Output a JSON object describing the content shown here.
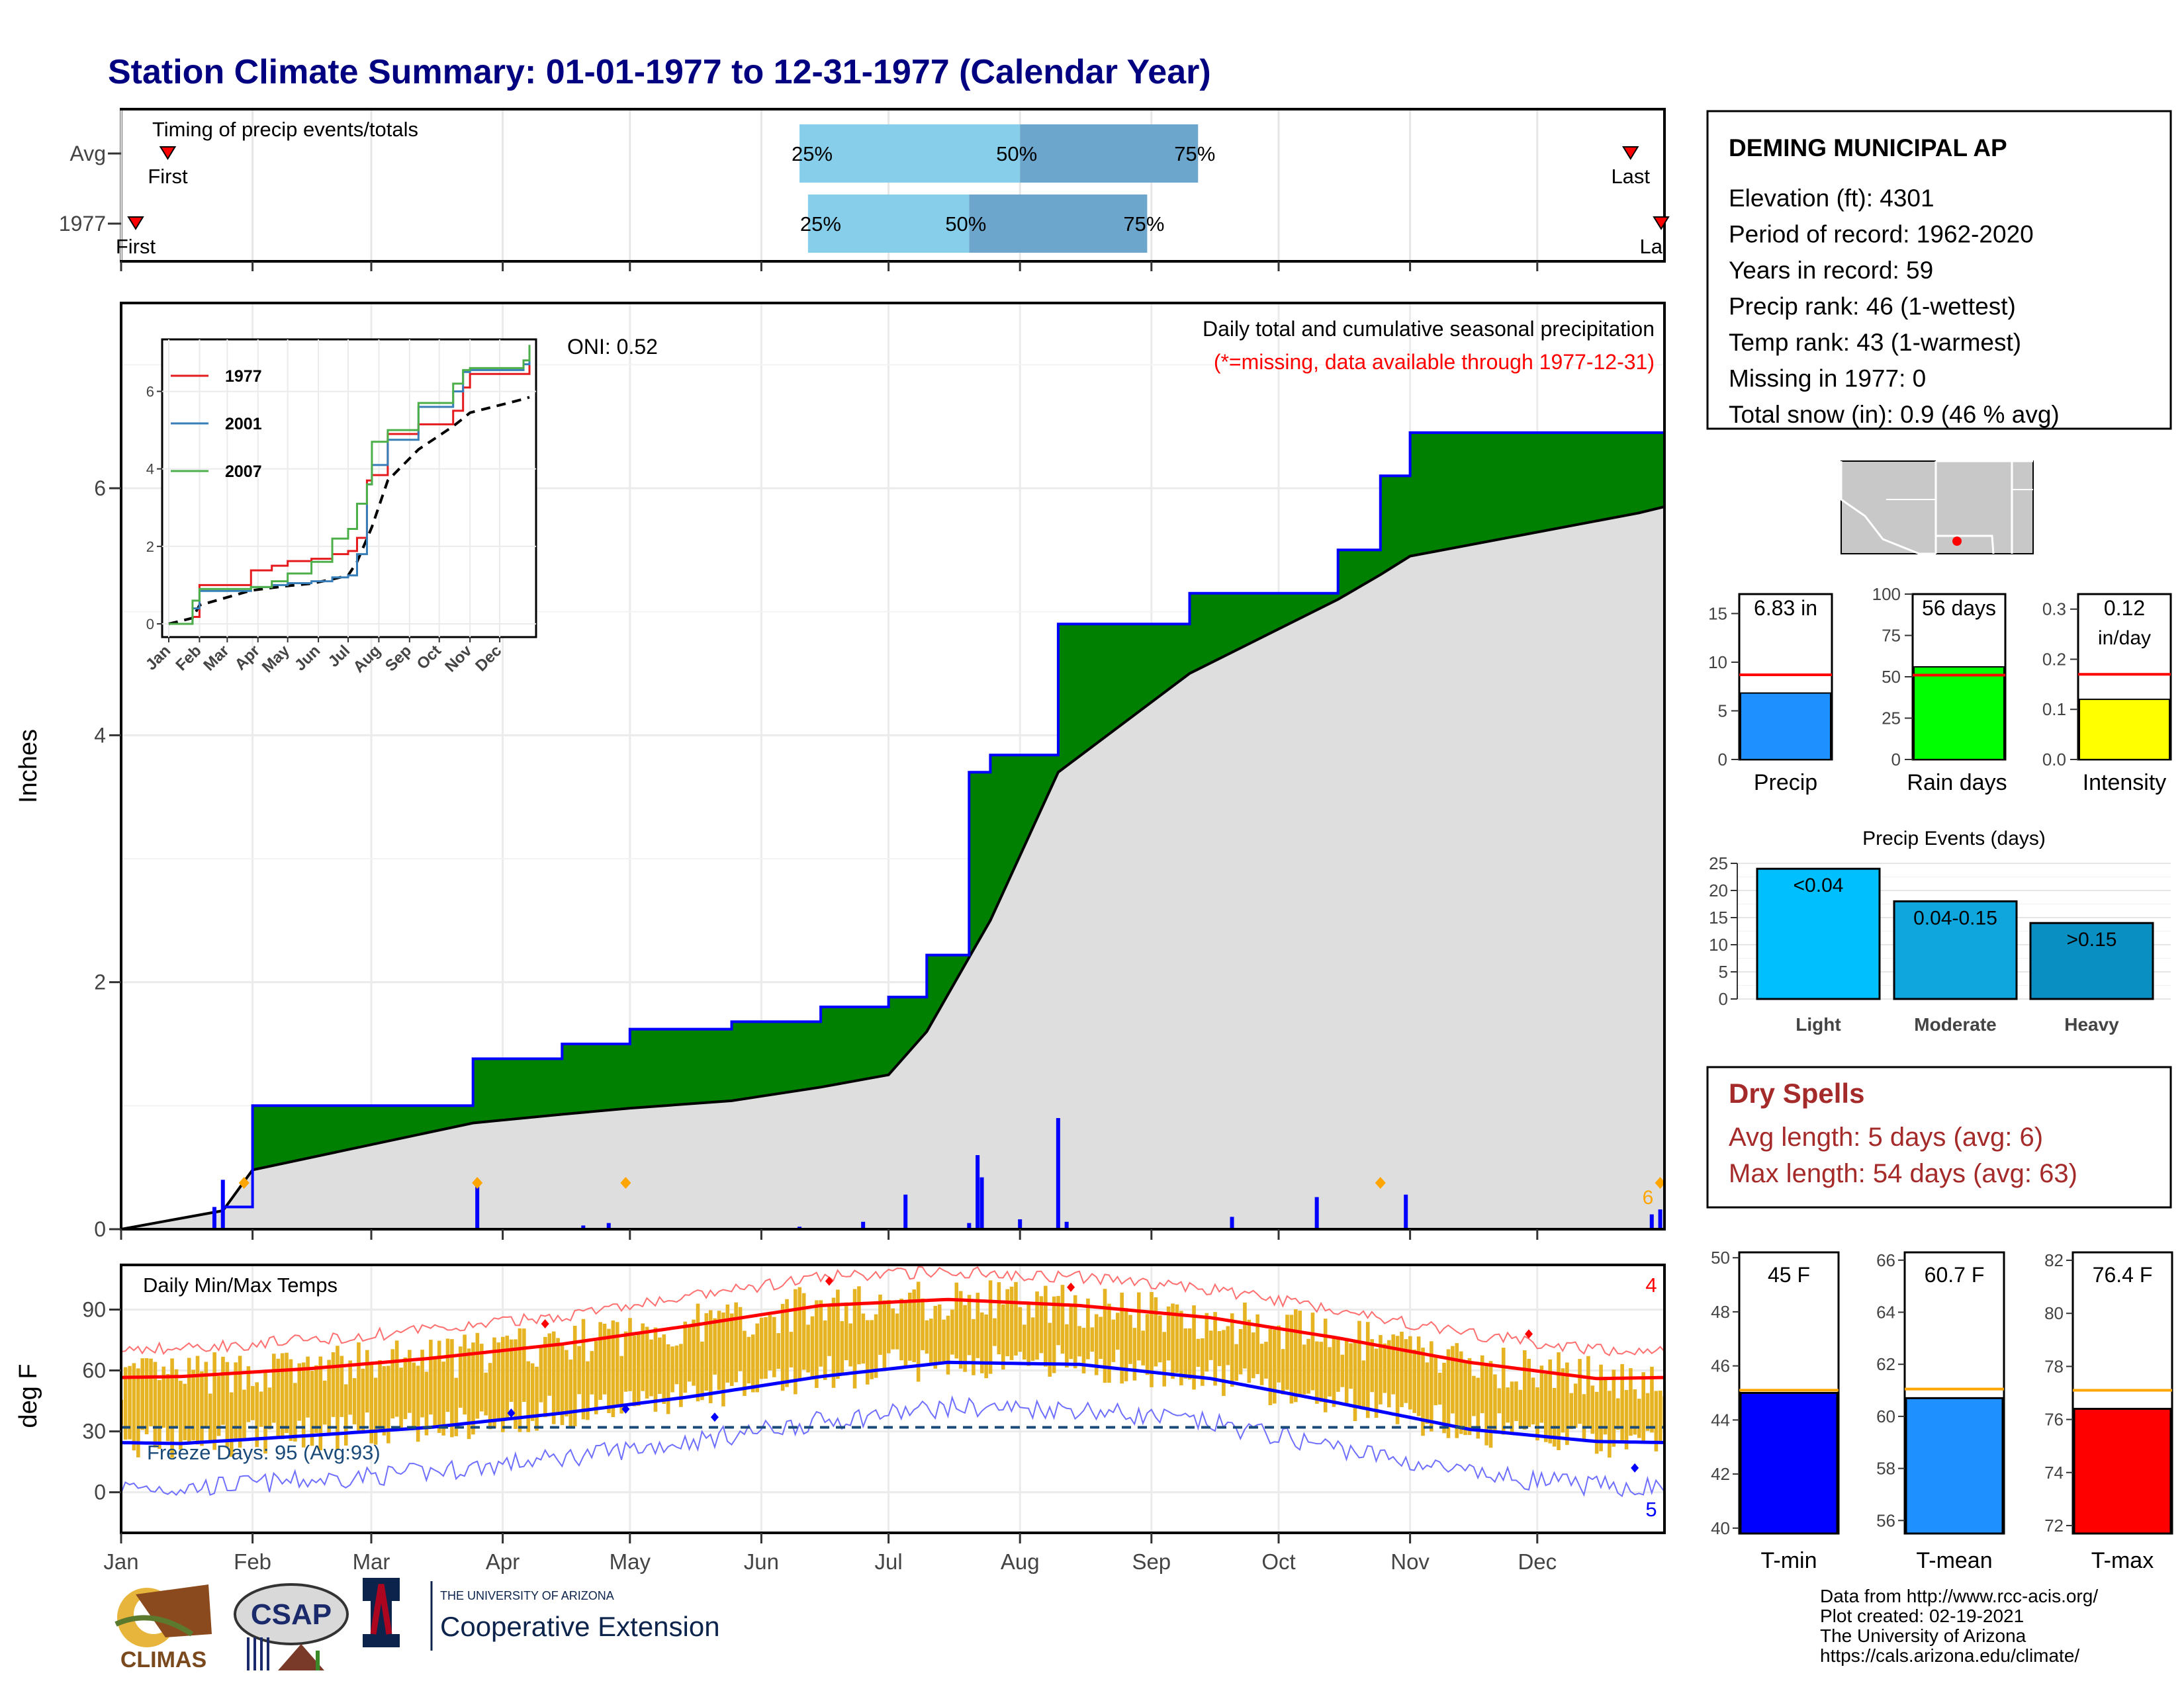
{
  "title": "Station Climate Summary: 01-01-1977 to 12-31-1977 (Calendar Year)",
  "months": [
    "Jan",
    "Feb",
    "Mar",
    "Apr",
    "May",
    "Jun",
    "Jul",
    "Aug",
    "Sep",
    "Oct",
    "Nov",
    "Dec"
  ],
  "timing": {
    "label": "Timing of precip events/totals",
    "rows": [
      {
        "name": "Avg",
        "first_doy": 12,
        "last_doy": 357,
        "p25": 161,
        "p50": 213,
        "p75": 255,
        "first_label": "First",
        "last_label": "Last",
        "l25": "25%",
        "l50": "50%",
        "l75": "75%"
      },
      {
        "name": "1977",
        "first_doy": 1,
        "last_doy": 365,
        "p25": 163,
        "p50": 201,
        "p75": 243,
        "first_label": "First",
        "last_label": "La",
        "l25": "25%",
        "l50": "50%",
        "l75": "75%"
      }
    ]
  },
  "precip_panel": {
    "ylabel": "Inches",
    "yticks": [
      0,
      2,
      4,
      6
    ],
    "oni": "ONI: 0.52",
    "caption": "Daily total and cumulative seasonal precipitation",
    "missing_note": "(*=missing, data available through 1977-12-31)",
    "corner_count": "6",
    "colors": {
      "above_avg": "#008000",
      "avg_fill": "#dedede",
      "bars": "#0000ff",
      "snow": "#ffa500"
    }
  },
  "inset": {
    "yticks": [
      0,
      2,
      4,
      6
    ],
    "legend": [
      {
        "name": "1977",
        "color": "#e41a1c"
      },
      {
        "name": "2001",
        "color": "#377eb8"
      },
      {
        "name": "2007",
        "color": "#4daf4a"
      }
    ]
  },
  "temp_panel": {
    "title": "Daily Min/Max Temps",
    "ylabel": "deg F",
    "yticks": [
      0,
      30,
      60,
      90
    ],
    "freeze_text": "Freeze Days: 95 (Avg:93)",
    "freeze_line": 32,
    "count_hot": "4",
    "count_cold": "5"
  },
  "station": {
    "name": "DEMING MUNICIPAL AP",
    "lines": [
      "Elevation (ft): 4301",
      "Period of record: 1962-2020",
      "Years in record: 59",
      "Precip rank: 46 (1-wettest)",
      "Temp rank: 43 (1-warmest)",
      "Missing in 1977: 0",
      "Total snow (in): 0.9 (46 % avg)"
    ]
  },
  "mini_bars": [
    {
      "name": "Precip",
      "value": 6.83,
      "label": "6.83 in",
      "avg": 8.7,
      "ymax": 17,
      "ticks": [
        0,
        5,
        10,
        15
      ],
      "color": "#1e90ff"
    },
    {
      "name": "Rain days",
      "value": 56,
      "label": "56 days",
      "avg": 51,
      "ymax": 100,
      "ticks": [
        0,
        25,
        50,
        75,
        100
      ],
      "color": "#00ff00"
    },
    {
      "name": "Intensity",
      "value": 0.12,
      "label": "0.12",
      "label2": "in/day",
      "avg": 0.17,
      "ymax": 0.33,
      "ticks": [
        "0.0",
        "0.1",
        "0.2",
        "0.3"
      ],
      "color": "#ffff00"
    }
  ],
  "precip_events": {
    "title": "Precip Events (days)",
    "ymax": 25,
    "ticks": [
      0,
      5,
      10,
      15,
      20,
      25
    ],
    "bars": [
      {
        "name": "Light",
        "value": 24,
        "label": "<0.04",
        "color": "#00bfff"
      },
      {
        "name": "Moderate",
        "value": 18,
        "label": "0.04-0.15",
        "color": "#0fa5dd"
      },
      {
        "name": "Heavy",
        "value": 14,
        "label": ">0.15",
        "color": "#0a8fc2"
      }
    ]
  },
  "dry_spells": {
    "title": "Dry Spells",
    "lines": [
      "Avg length: 5 days (avg: 6)",
      "Max length: 54 days (avg: 63)"
    ]
  },
  "temp_bars": [
    {
      "name": "T-min",
      "value": 45,
      "label": "45 F",
      "avg": 45.1,
      "ymin": 39.8,
      "ymax": 50.2,
      "ticks": [
        40,
        42,
        44,
        46,
        48,
        50
      ],
      "color": "#0000ff"
    },
    {
      "name": "T-mean",
      "value": 60.7,
      "label": "60.7 F",
      "avg": 61.05,
      "ymin": 55.5,
      "ymax": 66.3,
      "ticks": [
        56,
        58,
        60,
        62,
        64,
        66
      ],
      "color": "#1e90ff"
    },
    {
      "name": "T-max",
      "value": 76.4,
      "label": "76.4 F",
      "avg": 77.1,
      "ymin": 71.7,
      "ymax": 82.3,
      "ticks": [
        72,
        74,
        76,
        78,
        80,
        82
      ],
      "color": "#ff0000"
    }
  ],
  "footer": {
    "lines": [
      "Data from http://www.rcc-acis.org/",
      "Plot created: 02-19-2021",
      "The University of Arizona",
      "https://cals.arizona.edu/climate/"
    ],
    "logos": {
      "climas": "CLIMAS",
      "csap": "CSAP",
      "ua_small": "THE UNIVERSITY OF ARIZONA",
      "coop": "Cooperative Extension"
    }
  },
  "chart_data": {
    "type": "area",
    "title": "Daily total and cumulative seasonal precipitation",
    "ylabel": "Inches",
    "ylim": [
      0,
      7.5
    ],
    "x": [
      "1977-01-01",
      "1977-01-25",
      "1977-02-01",
      "1977-03-25",
      "1977-04-15",
      "1977-05-01",
      "1977-05-25",
      "1977-06-15",
      "1977-07-01",
      "1977-07-10",
      "1977-07-20",
      "1977-07-25",
      "1977-08-10",
      "1977-09-10",
      "1977-10-15",
      "1977-10-25",
      "1977-11-01",
      "1977-12-25",
      "1977-12-31"
    ],
    "series": [
      {
        "name": "1977",
        "values": [
          0,
          0.18,
          1.0,
          1.38,
          1.5,
          1.62,
          1.68,
          1.8,
          1.88,
          2.22,
          3.7,
          3.84,
          4.9,
          5.15,
          5.5,
          6.1,
          6.45,
          6.45,
          6.83
        ]
      },
      {
        "name": "2001",
        "values": [
          0,
          0.4,
          0.85,
          0.95,
          1.0,
          1.05,
          1.1,
          1.2,
          1.25,
          1.8,
          3.6,
          4.1,
          4.75,
          5.6,
          6.0,
          6.5,
          6.55,
          6.7,
          6.95
        ]
      },
      {
        "name": "2007",
        "values": [
          0,
          0.6,
          0.9,
          0.95,
          1.1,
          1.3,
          1.6,
          2.2,
          2.45,
          3.1,
          3.6,
          4.7,
          5.0,
          5.7,
          6.2,
          6.55,
          6.6,
          6.8,
          7.2
        ]
      }
    ],
    "average_cumulative": [
      0,
      0.15,
      0.48,
      0.86,
      0.93,
      0.98,
      1.04,
      1.15,
      1.25,
      1.6,
      2.2,
      2.5,
      3.7,
      4.5,
      5.1,
      5.3,
      5.45,
      5.8,
      5.85
    ],
    "daily_bars": [
      {
        "date": "1977-01-23",
        "in": 0.18
      },
      {
        "date": "1977-01-25",
        "in": 0.4
      },
      {
        "date": "1977-03-26",
        "in": 0.38
      },
      {
        "date": "1977-04-20",
        "in": 0.03
      },
      {
        "date": "1977-04-26",
        "in": 0.05
      },
      {
        "date": "1977-06-10",
        "in": 0.02
      },
      {
        "date": "1977-06-25",
        "in": 0.06
      },
      {
        "date": "1977-07-05",
        "in": 0.28
      },
      {
        "date": "1977-07-20",
        "in": 0.05
      },
      {
        "date": "1977-07-22",
        "in": 0.6
      },
      {
        "date": "1977-07-23",
        "in": 0.42
      },
      {
        "date": "1977-08-01",
        "in": 0.08
      },
      {
        "date": "1977-08-10",
        "in": 0.9
      },
      {
        "date": "1977-08-12",
        "in": 0.06
      },
      {
        "date": "1977-09-20",
        "in": 0.1
      },
      {
        "date": "1977-10-10",
        "in": 0.26
      },
      {
        "date": "1977-10-31",
        "in": 0.28
      },
      {
        "date": "1977-12-28",
        "in": 0.12
      },
      {
        "date": "1977-12-30",
        "in": 0.16
      }
    ],
    "temperature": {
      "type": "line",
      "ylabel": "deg F",
      "ylim": [
        -20,
        112
      ],
      "avg_max_by_month": [
        57,
        61,
        66,
        73,
        82,
        92,
        95,
        92,
        86,
        76,
        64,
        56
      ],
      "avg_min_by_month": [
        24,
        28,
        32,
        39,
        47,
        57,
        64,
        63,
        56,
        44,
        31,
        25
      ]
    }
  }
}
